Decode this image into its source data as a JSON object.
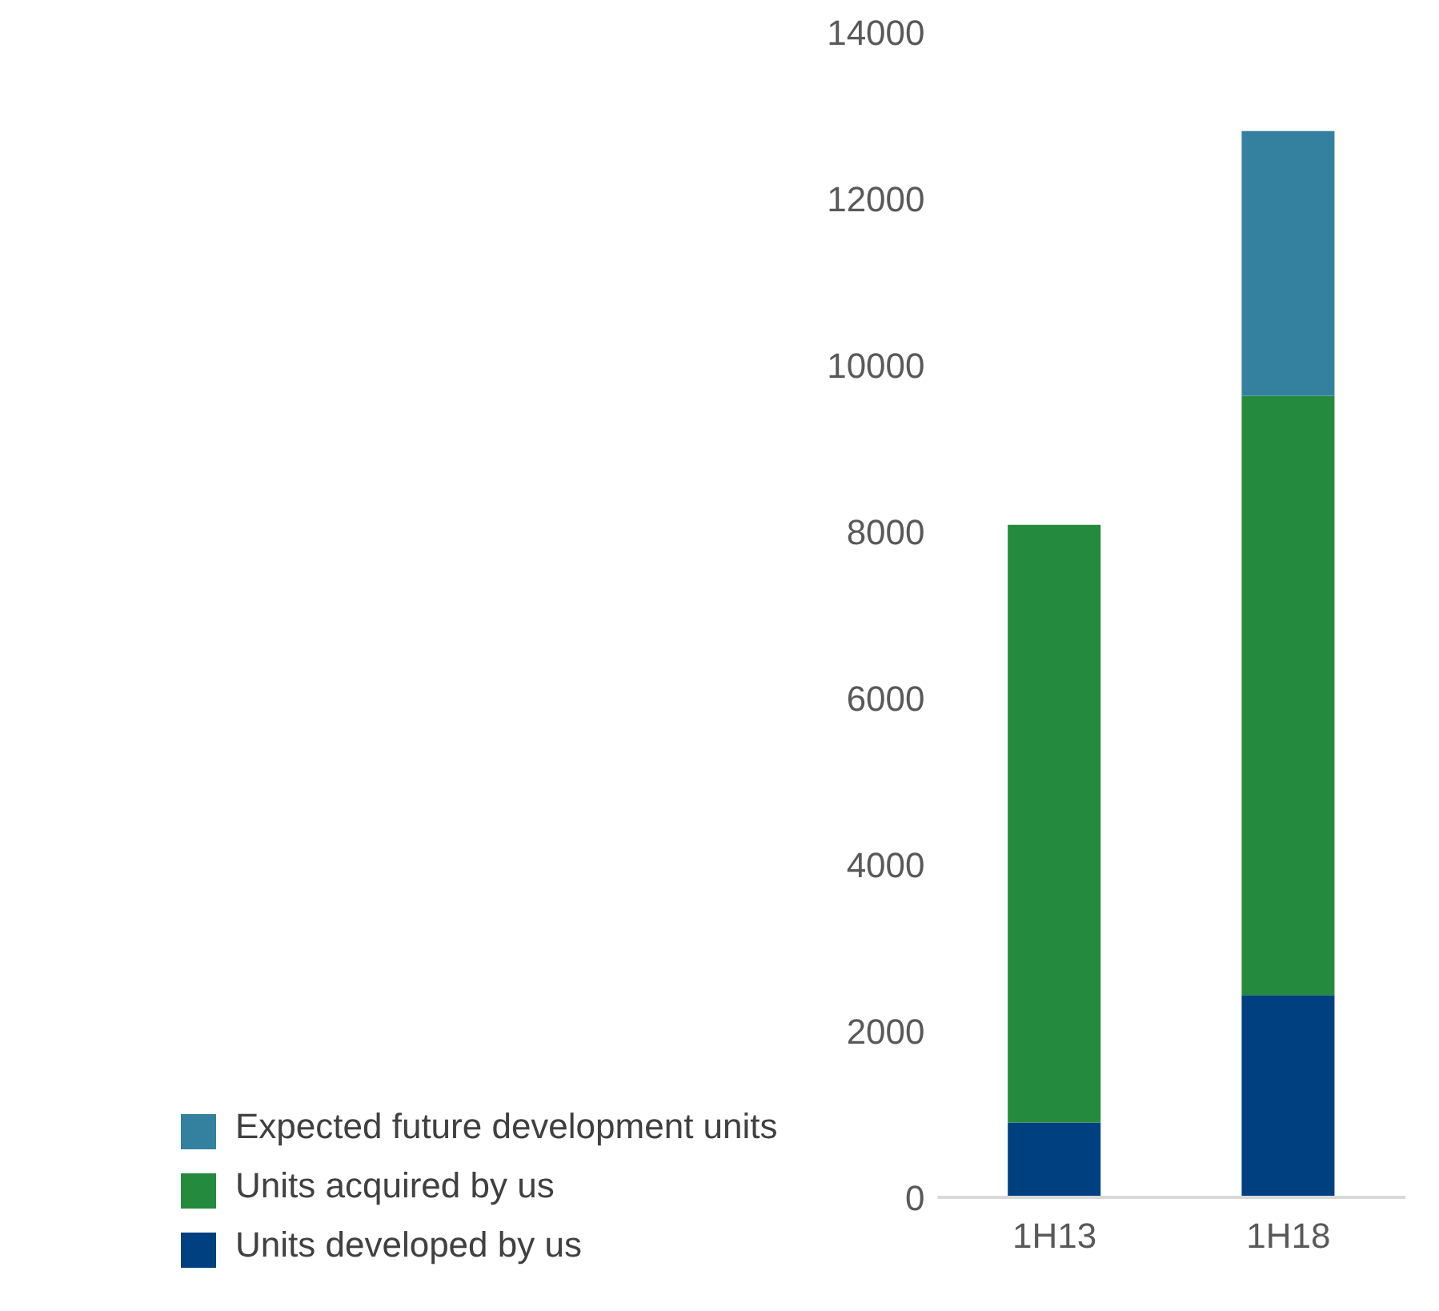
{
  "chart_data": {
    "type": "bar",
    "stacked": true,
    "categories": [
      "1H13",
      "1H18"
    ],
    "series": [
      {
        "name": "Units developed by us",
        "color": "#003f80",
        "values": [
          900,
          2430
        ]
      },
      {
        "name": "Units acquired by us",
        "color": "#248a3d",
        "values": [
          7180,
          7200
        ]
      },
      {
        "name": "Expected future development units",
        "color": "#34809f",
        "values": [
          0,
          3180
        ]
      }
    ],
    "ylim": [
      0,
      14000
    ],
    "yticks": [
      0,
      2000,
      4000,
      6000,
      8000,
      10000,
      12000,
      14000
    ],
    "grid": false,
    "legend": "bottom"
  }
}
